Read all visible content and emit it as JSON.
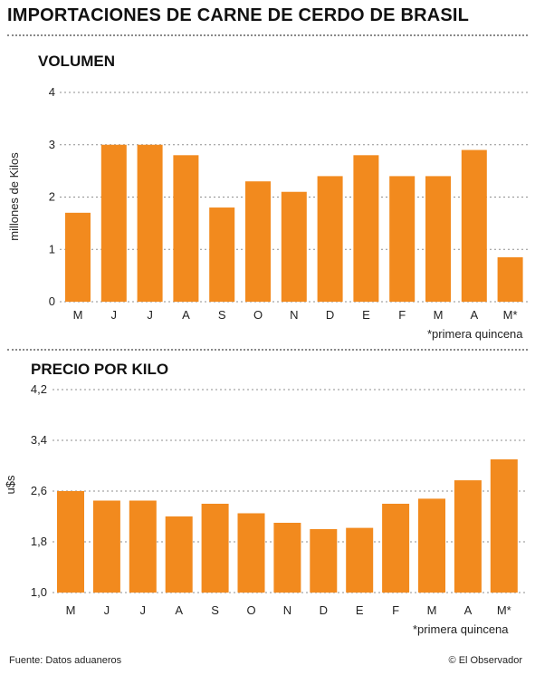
{
  "header": {
    "title": "IMPORTACIONES DE CARNE DE CERDO DE BRASIL"
  },
  "footer": {
    "source": "Fuente: Datos aduaneros",
    "credit": "© El Observador"
  },
  "colors": {
    "bar": "#F28A1E",
    "grid": "#8f8f8f",
    "text": "#222222"
  },
  "chart_data": [
    {
      "type": "bar",
      "title": "VOLUMEN",
      "ylabel": "millones de Kilos",
      "xlabel": "",
      "categories": [
        "M",
        "J",
        "J",
        "A",
        "S",
        "O",
        "N",
        "D",
        "E",
        "F",
        "M",
        "A",
        "M*"
      ],
      "values": [
        1.7,
        3.0,
        3.0,
        2.8,
        1.8,
        2.3,
        2.1,
        2.4,
        2.8,
        2.4,
        2.4,
        2.9,
        0.85
      ],
      "ylim": [
        0,
        4
      ],
      "yticks": [
        "0",
        "1",
        "2",
        "3",
        "4"
      ],
      "grid": true,
      "footnote": "*primera quincena"
    },
    {
      "type": "bar",
      "title": "PRECIO POR KILO",
      "ylabel": "u$s",
      "xlabel": "",
      "categories": [
        "M",
        "J",
        "J",
        "A",
        "S",
        "O",
        "N",
        "D",
        "E",
        "F",
        "M",
        "A",
        "M*"
      ],
      "values": [
        2.6,
        2.45,
        2.45,
        2.2,
        2.4,
        2.25,
        2.1,
        2.0,
        2.02,
        2.4,
        2.48,
        2.77,
        3.1
      ],
      "ylim": [
        1.0,
        4.2
      ],
      "yticks": [
        "1,0",
        "1,8",
        "2,6",
        "3,4",
        "4,2"
      ],
      "grid": true,
      "footnote": "*primera quincena"
    }
  ]
}
